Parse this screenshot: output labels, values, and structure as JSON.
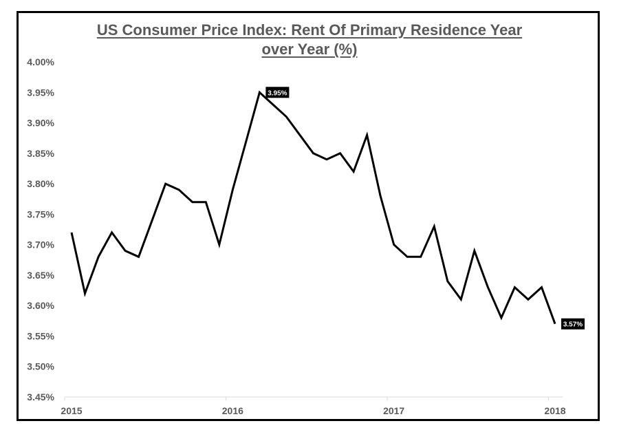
{
  "chart_data": {
    "type": "line",
    "title_lines": [
      "US Consumer Price Index: Rent Of Primary Residence Year",
      "over Year (%)"
    ],
    "xlabel": "",
    "ylabel": "",
    "ylim": [
      3.45,
      4.0
    ],
    "y_ticks": [
      4.0,
      3.95,
      3.9,
      3.85,
      3.8,
      3.75,
      3.7,
      3.65,
      3.6,
      3.55,
      3.5,
      3.45
    ],
    "y_tick_labels": [
      "4.00%",
      "3.95%",
      "3.90%",
      "3.85%",
      "3.80%",
      "3.75%",
      "3.70%",
      "3.65%",
      "3.60%",
      "3.55%",
      "3.50%",
      "3.45%"
    ],
    "x_tick_labels": [
      "2015",
      "2016",
      "2017",
      "2018"
    ],
    "grid": false,
    "line_color": "#000000",
    "series": [
      {
        "name": "Rent of Primary Residence YoY",
        "start": "2015-01",
        "values": [
          3.72,
          3.62,
          3.68,
          3.72,
          3.69,
          3.68,
          3.74,
          3.8,
          3.79,
          3.77,
          3.77,
          3.7,
          3.79,
          3.87,
          3.95,
          3.93,
          3.91,
          3.88,
          3.85,
          3.84,
          3.85,
          3.82,
          3.88,
          3.78,
          3.7,
          3.68,
          3.68,
          3.73,
          3.64,
          3.61,
          3.69,
          3.63,
          3.58,
          3.63,
          3.61,
          3.63,
          3.57
        ]
      }
    ],
    "annotations": [
      {
        "label": "3.95%",
        "index": 14
      },
      {
        "label": "3.57%",
        "index": 36
      }
    ]
  }
}
